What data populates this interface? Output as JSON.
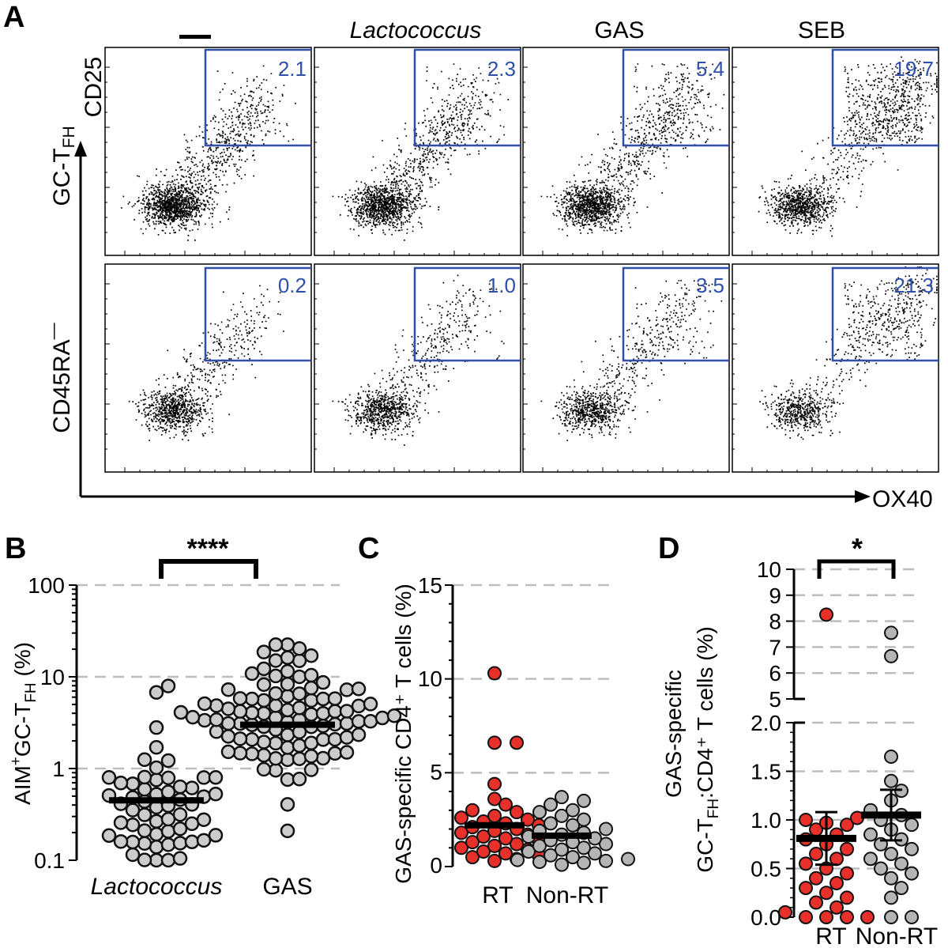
{
  "chart_data": [
    {
      "panel": "A",
      "type": "scatter",
      "columns": [
        "—",
        "Lactococcus",
        "GAS",
        "SEB"
      ],
      "rows": [
        "GC-TFH",
        "CD45RA⁻"
      ],
      "row_labels": {
        "gc_tfh_base": "GC-T",
        "gc_tfh_sub": "FH",
        "cd45ra": "CD45RA"
      },
      "xlabel": "OX40",
      "ylabel": "CD25",
      "gate_percent": [
        [
          "2.1",
          "2.3",
          "5.4",
          "19.7"
        ],
        [
          "0.2",
          "1.0",
          "3.5",
          "21.3"
        ]
      ],
      "gate_color": "#2f4fa8"
    },
    {
      "panel": "B",
      "type": "scatter",
      "scale": "log",
      "ylim": [
        0.1,
        100
      ],
      "yticks": [
        "0.1",
        "1",
        "10",
        "100"
      ],
      "ylabel": {
        "pre": "AIM",
        "sup": "+",
        "mid": "GC-T",
        "sub": "FH",
        "post": " (%)"
      },
      "categories": [
        "Lactococcus",
        "GAS"
      ],
      "means": [
        0.45,
        3.0
      ],
      "significance": "****",
      "point_color": "#cccccc"
    },
    {
      "panel": "C",
      "type": "scatter",
      "ylim": [
        0,
        15
      ],
      "yticks": [
        "0",
        "5",
        "10",
        "15"
      ],
      "ylabel": "GAS-specific CD4⁺ T cells (%)",
      "categories": [
        "RT",
        "Non-RT"
      ],
      "means": [
        2.2,
        1.65
      ],
      "series": [
        {
          "category": "RT",
          "color": "#e8302a",
          "values": [
            10.3,
            6.6,
            6.6,
            4.4,
            3.6,
            3.3,
            3.0,
            2.9,
            2.7,
            2.6,
            2.5,
            2.4,
            2.3,
            2.2,
            2.1,
            2.0,
            1.9,
            1.8,
            1.7,
            1.6,
            1.5,
            1.4,
            1.3,
            1.2,
            1.1,
            1.0,
            0.9,
            0.8,
            0.7,
            0.6,
            0.5,
            0.4,
            0.3
          ]
        },
        {
          "category": "Non-RT",
          "color": "#b5b5b5",
          "values": [
            3.7,
            3.5,
            3.3,
            3.0,
            2.9,
            2.7,
            2.5,
            2.3,
            2.2,
            2.0,
            1.9,
            1.8,
            1.7,
            1.6,
            1.5,
            1.4,
            1.3,
            1.2,
            1.1,
            1.0,
            0.9,
            0.8,
            0.7,
            0.6,
            0.5,
            0.4,
            0.35,
            0.3,
            0.25,
            0.2,
            0.1
          ]
        }
      ]
    },
    {
      "panel": "D",
      "type": "scatter",
      "broken_axis": true,
      "ylim_lower": [
        0,
        2
      ],
      "ylim_upper": [
        5,
        10
      ],
      "yticks_lower": [
        "0.0",
        "0.5",
        "1.0",
        "1.5",
        "2.0"
      ],
      "yticks_upper": [
        "5",
        "6",
        "7",
        "8",
        "9",
        "10"
      ],
      "ylabel_line1": "GAS-specific",
      "ylabel_line2": {
        "pre": "GC-T",
        "sub": "FH",
        "post": ":CD4⁺ T cells (%)"
      },
      "categories": [
        "RT",
        "Non-RT"
      ],
      "means": [
        0.81,
        1.05
      ],
      "sem": [
        0.27,
        0.26
      ],
      "significance": "*",
      "series": [
        {
          "category": "RT",
          "color": "#e8302a",
          "values": [
            8.25,
            1.02,
            1.0,
            0.97,
            0.95,
            0.9,
            0.85,
            0.8,
            0.75,
            0.7,
            0.65,
            0.6,
            0.55,
            0.5,
            0.45,
            0.4,
            0.35,
            0.3,
            0.25,
            0.2,
            0.15,
            0.1,
            0.05,
            0.0,
            0.0,
            0.0,
            0.0
          ]
        },
        {
          "category": "Non-RT",
          "color": "#b5b5b5",
          "values": [
            7.55,
            6.65,
            1.65,
            1.4,
            1.3,
            1.2,
            1.1,
            1.05,
            1.0,
            0.95,
            0.9,
            0.85,
            0.8,
            0.75,
            0.7,
            0.65,
            0.6,
            0.55,
            0.5,
            0.45,
            0.4,
            0.3,
            0.2,
            0.0,
            0.0
          ]
        }
      ]
    }
  ],
  "labels": {
    "A": "A",
    "B": "B",
    "C": "C",
    "D": "D"
  }
}
